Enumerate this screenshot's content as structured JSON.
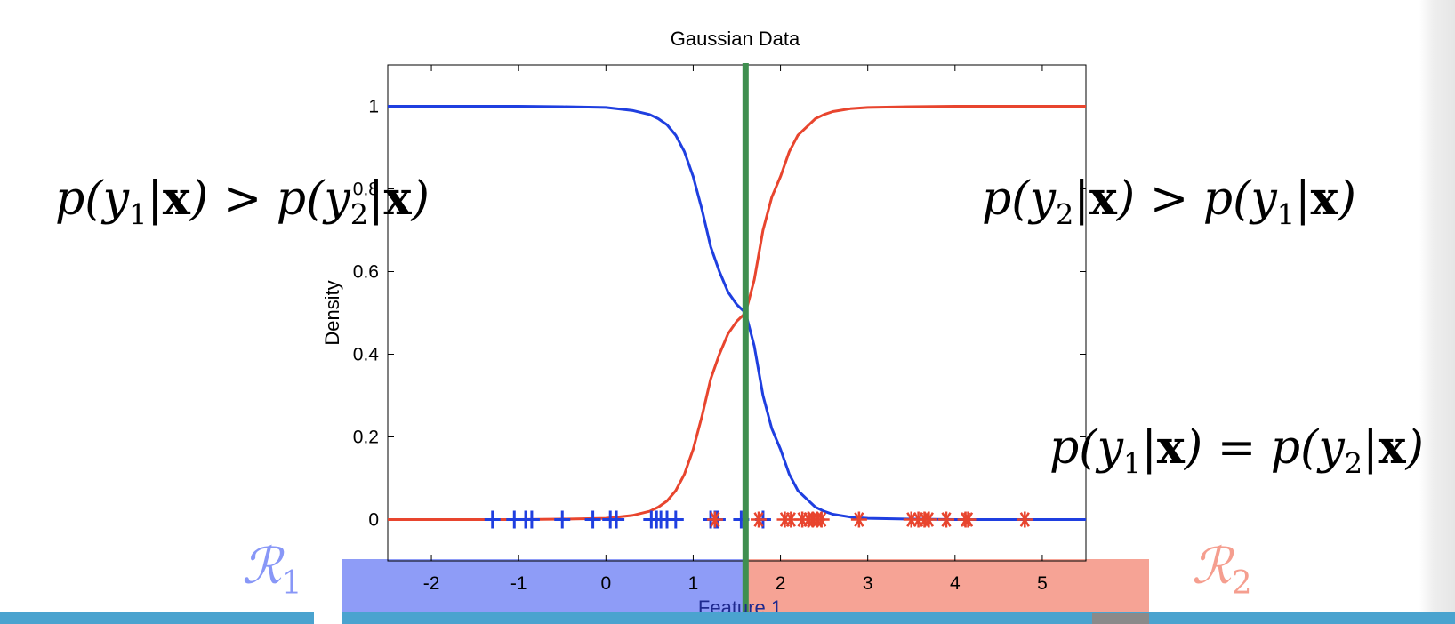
{
  "chart_data": {
    "type": "line",
    "title": "Gaussian Data",
    "xlabel": "Feature 1",
    "ylabel": "Density",
    "xlim": [
      -2.5,
      5.5
    ],
    "ylim": [
      -0.1,
      1.1
    ],
    "x_ticks": [
      "-2",
      "-1",
      "0",
      "1",
      "2",
      "3",
      "4",
      "5"
    ],
    "y_ticks": [
      "0",
      "0.2",
      "0.4",
      "0.6",
      "0.8",
      "1"
    ],
    "grid": false,
    "decision_boundary": 1.6,
    "series": [
      {
        "color": "#1f3fe0",
        "x": [
          -2.5,
          -2.0,
          -1.5,
          -1.0,
          -0.5,
          0.0,
          0.3,
          0.5,
          0.6,
          0.7,
          0.8,
          0.9,
          1.0,
          1.1,
          1.2,
          1.3,
          1.4,
          1.5,
          1.6,
          1.7,
          1.8,
          1.9,
          2.0,
          2.1,
          2.2,
          2.3,
          2.4,
          2.5,
          2.6,
          2.8,
          3.0,
          3.5,
          4.0,
          5.0,
          5.5
        ],
        "values": [
          1.0,
          1.0,
          1.0,
          1.0,
          0.999,
          0.997,
          0.99,
          0.98,
          0.97,
          0.955,
          0.93,
          0.89,
          0.83,
          0.75,
          0.66,
          0.6,
          0.55,
          0.52,
          0.5,
          0.42,
          0.3,
          0.22,
          0.17,
          0.11,
          0.07,
          0.05,
          0.03,
          0.02,
          0.013,
          0.006,
          0.003,
          0.001,
          0.0,
          0.0,
          0.0
        ]
      },
      {
        "color": "#e8452e",
        "x": [
          -2.5,
          -2.0,
          -1.5,
          -1.0,
          -0.5,
          0.0,
          0.3,
          0.5,
          0.6,
          0.7,
          0.8,
          0.9,
          1.0,
          1.1,
          1.2,
          1.3,
          1.4,
          1.5,
          1.6,
          1.7,
          1.8,
          1.9,
          2.0,
          2.1,
          2.2,
          2.3,
          2.4,
          2.5,
          2.6,
          2.8,
          3.0,
          3.5,
          4.0,
          5.0,
          5.5
        ],
        "values": [
          0.0,
          0.0,
          0.0,
          0.0,
          0.001,
          0.003,
          0.01,
          0.02,
          0.03,
          0.045,
          0.07,
          0.11,
          0.17,
          0.25,
          0.34,
          0.4,
          0.45,
          0.48,
          0.5,
          0.58,
          0.7,
          0.78,
          0.83,
          0.89,
          0.93,
          0.95,
          0.97,
          0.98,
          0.987,
          0.994,
          0.997,
          0.999,
          1.0,
          1.0,
          1.0
        ]
      }
    ],
    "class1_points": {
      "marker": "+",
      "color": "#1f3fe0",
      "x": [
        -1.3,
        -1.05,
        -0.92,
        -0.85,
        -0.5,
        -0.15,
        0.05,
        0.12,
        0.52,
        0.58,
        0.63,
        0.7,
        0.8,
        1.2,
        1.25,
        1.28,
        1.55,
        1.8
      ]
    },
    "class2_points": {
      "marker": "*",
      "color": "#e8452e",
      "x": [
        1.25,
        1.75,
        2.05,
        2.12,
        2.25,
        2.32,
        2.37,
        2.42,
        2.47,
        2.9,
        3.5,
        3.58,
        3.65,
        3.7,
        3.9,
        4.12,
        4.15,
        4.8
      ]
    }
  },
  "regions": {
    "r1": {
      "label": "ℛ",
      "sub": "1",
      "color": "#8897f7"
    },
    "r2": {
      "label": "ℛ",
      "sub": "2",
      "color": "#f59e8f"
    }
  },
  "annotations": {
    "left": {
      "p1": "p(",
      "y1": "y",
      "s1": "1",
      "m1": "|",
      "x1": "x",
      "c1": ") > p(",
      "y2": "y",
      "s2": "2",
      "m2": "|",
      "x2": "x",
      "c2": ")"
    },
    "right": {
      "p1": "p(",
      "y1": "y",
      "s1": "2",
      "m1": "|",
      "x1": "x",
      "c1": ") > p(",
      "y2": "y",
      "s2": "1",
      "m2": "|",
      "x2": "x",
      "c2": ")"
    },
    "equal": {
      "p1": "p(",
      "y1": "y",
      "s1": "1",
      "m1": "|",
      "x1": "x",
      "c1": ") = p(",
      "y2": "y",
      "s2": "2",
      "m2": "|",
      "x2": "x",
      "c2": ")"
    }
  }
}
